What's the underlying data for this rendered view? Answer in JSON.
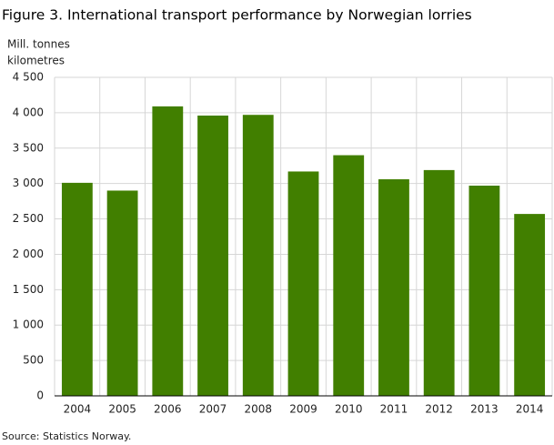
{
  "chart_data": {
    "type": "bar",
    "title": "Figure 3. International transport performance by Norwegian lorries",
    "y_label": [
      "Mill. tonnes",
      "kilometres"
    ],
    "source": "Source: Statistics Norway.",
    "categories": [
      "2004",
      "2005",
      "2006",
      "2007",
      "2008",
      "2009",
      "2010",
      "2011",
      "2012",
      "2013",
      "2014"
    ],
    "values": [
      3010,
      2900,
      4090,
      3960,
      3970,
      3170,
      3400,
      3060,
      3190,
      2970,
      2570
    ],
    "color": "#417f00",
    "ylim": [
      0,
      4500
    ],
    "yticks": [
      0,
      500,
      {
        "value": 1000,
        "label": "1 000"
      },
      {
        "value": 1500,
        "label": "1 500"
      },
      {
        "value": 2000,
        "label": "2 000"
      },
      {
        "value": 2500,
        "label": "2 500"
      },
      {
        "value": 3000,
        "label": "3 000"
      },
      {
        "value": 3500,
        "label": "3 500"
      },
      {
        "value": 4000,
        "label": "4 000"
      },
      {
        "value": 4500,
        "label": "4 500"
      }
    ],
    "grid": true
  }
}
